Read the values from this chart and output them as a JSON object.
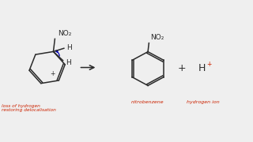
{
  "bg_color": "#efefef",
  "text_color": "#1a1a1a",
  "red_color": "#cc2200",
  "blue_color": "#0000bb",
  "line_color": "#2a2a2a",
  "label1": "loss of hydrogen\nrestoring delocalisation",
  "label2": "nitrobenzene",
  "label3": "hydrogen ion",
  "no2_text": "NO₂",
  "plus_sign": "+"
}
